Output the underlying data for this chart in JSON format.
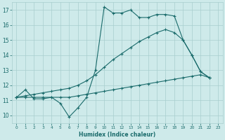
{
  "xlabel": "Humidex (Indice chaleur)",
  "xlim": [
    -0.5,
    23.5
  ],
  "ylim": [
    9.5,
    17.5
  ],
  "yticks": [
    10,
    11,
    12,
    13,
    14,
    15,
    16,
    17
  ],
  "xticks": [
    0,
    1,
    2,
    3,
    4,
    5,
    6,
    7,
    8,
    9,
    10,
    11,
    12,
    13,
    14,
    15,
    16,
    17,
    18,
    19,
    20,
    21,
    22,
    23
  ],
  "bg_color": "#ceeaea",
  "grid_color": "#a8cece",
  "line_color": "#1a6b6b",
  "line1_x": [
    0,
    1,
    2,
    3,
    4,
    5,
    6,
    7,
    8,
    9,
    10,
    11,
    12,
    13,
    14,
    15,
    16,
    17,
    18,
    19,
    20,
    21,
    22
  ],
  "line1_y": [
    11.2,
    11.7,
    11.1,
    11.1,
    11.2,
    10.8,
    9.9,
    10.5,
    11.2,
    13.0,
    17.2,
    16.8,
    16.8,
    17.0,
    16.5,
    16.5,
    16.7,
    16.7,
    16.6,
    15.0,
    14.0,
    12.9,
    12.5
  ],
  "line2_x": [
    0,
    1,
    2,
    3,
    4,
    5,
    6,
    7,
    8,
    9,
    10,
    11,
    12,
    13,
    14,
    15,
    16,
    17,
    18,
    19,
    20,
    21,
    22
  ],
  "line2_y": [
    11.2,
    11.2,
    11.2,
    11.2,
    11.2,
    11.2,
    11.2,
    11.3,
    11.4,
    11.5,
    11.6,
    11.7,
    11.8,
    11.9,
    12.0,
    12.1,
    12.2,
    12.3,
    12.4,
    12.5,
    12.6,
    12.7,
    12.5
  ],
  "line3_x": [
    0,
    1,
    2,
    3,
    4,
    5,
    6,
    7,
    8,
    9,
    10,
    11,
    12,
    13,
    14,
    15,
    16,
    17,
    18,
    19,
    20,
    21,
    22
  ],
  "line3_y": [
    11.2,
    11.3,
    11.4,
    11.5,
    11.6,
    11.7,
    11.8,
    12.0,
    12.3,
    12.7,
    13.2,
    13.7,
    14.1,
    14.5,
    14.9,
    15.2,
    15.5,
    15.7,
    15.5,
    15.0,
    14.0,
    12.9,
    12.5
  ]
}
